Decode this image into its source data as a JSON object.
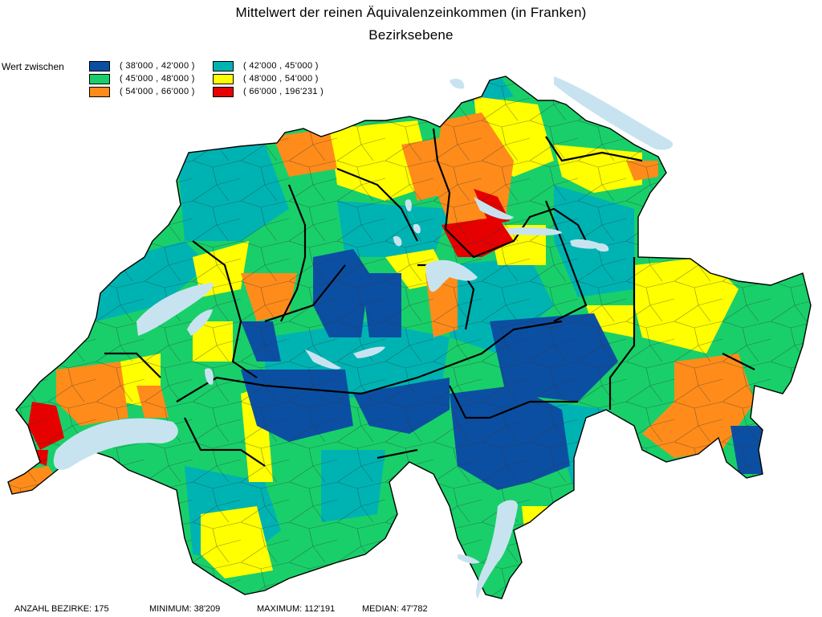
{
  "title": "Mittelwert der reinen Äquivalenzeinkommen (in Franken)",
  "subtitle": "Bezirksebene",
  "legend": {
    "label": "Wert zwischen",
    "classes": [
      {
        "range": "( 38'000 , 42'000 )",
        "color": "#0b4fa3"
      },
      {
        "range": "( 42'000 , 45'000 )",
        "color": "#00b3b3"
      },
      {
        "range": "( 45'000 , 48'000 )",
        "color": "#19cf6a"
      },
      {
        "range": "( 48'000 , 54'000 )",
        "color": "#ffff00"
      },
      {
        "range": "( 54'000 , 66'000 )",
        "color": "#ff8c1a"
      },
      {
        "range": "( 66'000 , 196'231 )",
        "color": "#e60000"
      }
    ]
  },
  "lake_color": "#c8e3f0",
  "footer": {
    "count": "ANZAHL BEZIRKE: 175",
    "minimum": "MINIMUM: 38'209",
    "maximum": "MAXIMUM: 112'191",
    "median": "MEDIAN: 47'782"
  }
}
